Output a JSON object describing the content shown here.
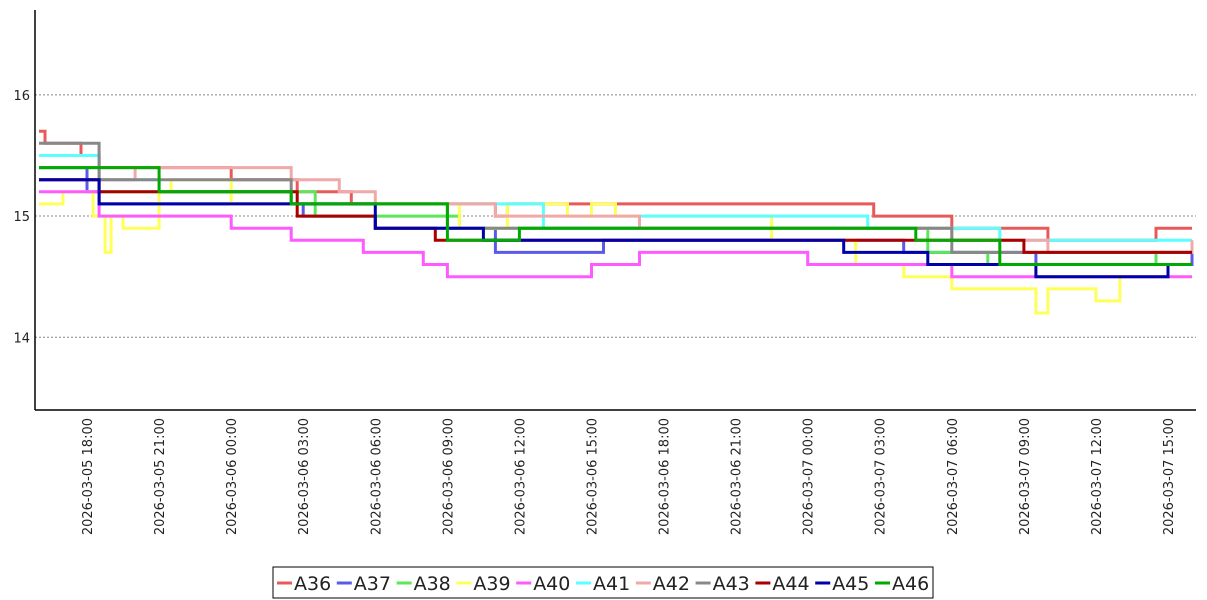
{
  "chart_data": {
    "type": "line",
    "step": true,
    "title": "",
    "xlabel": "",
    "ylabel": "",
    "grid": {
      "horizontal": true,
      "style": "dotted"
    },
    "legend": {
      "position": "bottom-center",
      "boxed": true
    },
    "x_range": [
      "2026-03-05 15:50",
      "2026-03-07 16:10"
    ],
    "y_range": [
      13.4,
      16.7
    ],
    "y_ticks": [
      14,
      15,
      16
    ],
    "x_ticks": [
      "2026-03-05 18:00",
      "2026-03-05 21:00",
      "2026-03-06 00:00",
      "2026-03-06 03:00",
      "2026-03-06 06:00",
      "2026-03-06 09:00",
      "2026-03-06 12:00",
      "2026-03-06 15:00",
      "2026-03-06 18:00",
      "2026-03-06 21:00",
      "2026-03-07 00:00",
      "2026-03-07 03:00",
      "2026-03-07 06:00",
      "2026-03-07 09:00",
      "2026-03-07 12:00",
      "2026-03-07 15:00"
    ],
    "series": [
      {
        "name": "A36",
        "color": "#e85a5a",
        "points": [
          [
            "2026-03-05 16:00",
            15.7
          ],
          [
            "2026-03-05 16:15",
            15.6
          ],
          [
            "2026-03-05 17:45",
            15.5
          ],
          [
            "2026-03-05 18:30",
            15.4
          ],
          [
            "2026-03-06 00:00",
            15.3
          ],
          [
            "2026-03-06 02:45",
            15.2
          ],
          [
            "2026-03-06 05:00",
            15.1
          ],
          [
            "2026-03-06 11:00",
            15.0
          ],
          [
            "2026-03-06 11:30",
            15.1
          ],
          [
            "2026-03-06 16:30",
            15.1
          ],
          [
            "2026-03-07 02:45",
            15.0
          ],
          [
            "2026-03-07 06:00",
            14.9
          ],
          [
            "2026-03-07 10:00",
            14.8
          ],
          [
            "2026-03-07 14:30",
            14.9
          ],
          [
            "2026-03-07 16:00",
            14.9
          ]
        ]
      },
      {
        "name": "A37",
        "color": "#5a5ae8",
        "points": [
          [
            "2026-03-05 16:00",
            15.4
          ],
          [
            "2026-03-05 18:00",
            15.2
          ],
          [
            "2026-03-05 18:30",
            15.1
          ],
          [
            "2026-03-06 03:00",
            15.0
          ],
          [
            "2026-03-06 06:00",
            14.9
          ],
          [
            "2026-03-06 11:00",
            14.7
          ],
          [
            "2026-03-06 15:30",
            14.8
          ],
          [
            "2026-03-07 04:00",
            14.7
          ],
          [
            "2026-03-07 09:30",
            14.6
          ],
          [
            "2026-03-07 16:00",
            14.7
          ]
        ]
      },
      {
        "name": "A38",
        "color": "#5ae85a",
        "points": [
          [
            "2026-03-05 16:00",
            15.4
          ],
          [
            "2026-03-05 18:30",
            15.2
          ],
          [
            "2026-03-06 03:30",
            15.0
          ],
          [
            "2026-03-06 09:30",
            14.9
          ],
          [
            "2026-03-07 05:00",
            14.7
          ],
          [
            "2026-03-07 07:30",
            14.6
          ],
          [
            "2026-03-07 14:30",
            14.7
          ],
          [
            "2026-03-07 16:00",
            14.7
          ]
        ]
      },
      {
        "name": "A39",
        "color": "#ffff5a",
        "points": [
          [
            "2026-03-05 16:00",
            15.1
          ],
          [
            "2026-03-05 17:00",
            15.2
          ],
          [
            "2026-03-05 18:15",
            15.0
          ],
          [
            "2026-03-05 18:45",
            14.7
          ],
          [
            "2026-03-05 19:00",
            15.0
          ],
          [
            "2026-03-05 19:30",
            14.9
          ],
          [
            "2026-03-05 21:00",
            15.2
          ],
          [
            "2026-03-05 21:30",
            15.3
          ],
          [
            "2026-03-06 00:00",
            15.1
          ],
          [
            "2026-03-06 09:00",
            15.1
          ],
          [
            "2026-03-06 09:30",
            14.9
          ],
          [
            "2026-03-06 11:30",
            15.1
          ],
          [
            "2026-03-06 14:00",
            15.0
          ],
          [
            "2026-03-06 15:00",
            15.1
          ],
          [
            "2026-03-06 16:00",
            15.0
          ],
          [
            "2026-03-06 22:30",
            14.8
          ],
          [
            "2026-03-07 02:00",
            14.6
          ],
          [
            "2026-03-07 04:00",
            14.5
          ],
          [
            "2026-03-07 06:00",
            14.4
          ],
          [
            "2026-03-07 09:30",
            14.2
          ],
          [
            "2026-03-07 10:00",
            14.4
          ],
          [
            "2026-03-07 12:00",
            14.3
          ],
          [
            "2026-03-07 13:00",
            14.5
          ],
          [
            "2026-03-07 16:00",
            14.5
          ]
        ]
      },
      {
        "name": "A40",
        "color": "#ff5aff",
        "points": [
          [
            "2026-03-05 16:00",
            15.2
          ],
          [
            "2026-03-05 18:30",
            15.0
          ],
          [
            "2026-03-06 00:00",
            14.9
          ],
          [
            "2026-03-06 02:30",
            14.8
          ],
          [
            "2026-03-06 05:30",
            14.7
          ],
          [
            "2026-03-06 08:00",
            14.6
          ],
          [
            "2026-03-06 09:00",
            14.5
          ],
          [
            "2026-03-06 15:00",
            14.6
          ],
          [
            "2026-03-06 17:00",
            14.7
          ],
          [
            "2026-03-07 00:00",
            14.6
          ],
          [
            "2026-03-07 06:00",
            14.5
          ],
          [
            "2026-03-07 16:00",
            14.5
          ]
        ]
      },
      {
        "name": "A41",
        "color": "#5affff",
        "points": [
          [
            "2026-03-05 16:00",
            15.5
          ],
          [
            "2026-03-05 18:30",
            15.3
          ],
          [
            "2026-03-05 21:00",
            15.2
          ],
          [
            "2026-03-06 02:30",
            15.1
          ],
          [
            "2026-03-06 13:00",
            14.9
          ],
          [
            "2026-03-06 17:00",
            15.0
          ],
          [
            "2026-03-06 23:30",
            15.0
          ],
          [
            "2026-03-07 02:30",
            14.9
          ],
          [
            "2026-03-07 08:00",
            14.8
          ],
          [
            "2026-03-07 15:00",
            14.8
          ],
          [
            "2026-03-07 16:00",
            14.8
          ]
        ]
      },
      {
        "name": "A42",
        "color": "#f0a8a8",
        "points": [
          [
            "2026-03-05 16:00",
            15.3
          ],
          [
            "2026-03-05 20:00",
            15.4
          ],
          [
            "2026-03-06 02:30",
            15.3
          ],
          [
            "2026-03-06 04:30",
            15.2
          ],
          [
            "2026-03-06 06:00",
            15.1
          ],
          [
            "2026-03-06 11:00",
            15.0
          ],
          [
            "2026-03-06 17:00",
            14.9
          ],
          [
            "2026-03-07 06:00",
            14.8
          ],
          [
            "2026-03-07 10:00",
            14.7
          ],
          [
            "2026-03-07 16:00",
            14.8
          ]
        ]
      },
      {
        "name": "A43",
        "color": "#888888",
        "points": [
          [
            "2026-03-05 16:00",
            15.6
          ],
          [
            "2026-03-05 18:30",
            15.3
          ],
          [
            "2026-03-06 02:30",
            15.1
          ],
          [
            "2026-03-06 09:00",
            14.9
          ],
          [
            "2026-03-06 23:30",
            14.9
          ],
          [
            "2026-03-07 06:00",
            14.7
          ],
          [
            "2026-03-07 10:00",
            14.7
          ],
          [
            "2026-03-07 16:00",
            14.7
          ]
        ]
      },
      {
        "name": "A44",
        "color": "#aa0000",
        "points": [
          [
            "2026-03-05 16:00",
            15.3
          ],
          [
            "2026-03-05 18:30",
            15.2
          ],
          [
            "2026-03-06 02:45",
            15.0
          ],
          [
            "2026-03-06 06:00",
            14.9
          ],
          [
            "2026-03-06 08:30",
            14.8
          ],
          [
            "2026-03-06 10:00",
            14.8
          ],
          [
            "2026-03-06 13:00",
            14.8
          ],
          [
            "2026-03-06 21:00",
            14.8
          ],
          [
            "2026-03-07 06:00",
            14.8
          ],
          [
            "2026-03-07 09:00",
            14.7
          ],
          [
            "2026-03-07 16:00",
            14.7
          ]
        ]
      },
      {
        "name": "A45",
        "color": "#0000aa",
        "points": [
          [
            "2026-03-05 16:00",
            15.3
          ],
          [
            "2026-03-05 18:30",
            15.1
          ],
          [
            "2026-03-06 06:00",
            14.9
          ],
          [
            "2026-03-06 10:30",
            14.8
          ],
          [
            "2026-03-06 15:00",
            14.8
          ],
          [
            "2026-03-07 01:30",
            14.7
          ],
          [
            "2026-03-07 05:00",
            14.6
          ],
          [
            "2026-03-07 09:30",
            14.5
          ],
          [
            "2026-03-07 15:00",
            14.6
          ],
          [
            "2026-03-07 16:00",
            14.6
          ]
        ]
      },
      {
        "name": "A46",
        "color": "#00aa00",
        "points": [
          [
            "2026-03-05 16:00",
            15.4
          ],
          [
            "2026-03-05 21:00",
            15.2
          ],
          [
            "2026-03-06 02:30",
            15.1
          ],
          [
            "2026-03-06 09:00",
            14.8
          ],
          [
            "2026-03-06 12:00",
            14.9
          ],
          [
            "2026-03-06 21:00",
            14.9
          ],
          [
            "2026-03-07 04:30",
            14.8
          ],
          [
            "2026-03-07 08:00",
            14.6
          ],
          [
            "2026-03-07 16:00",
            14.6
          ]
        ]
      }
    ]
  }
}
